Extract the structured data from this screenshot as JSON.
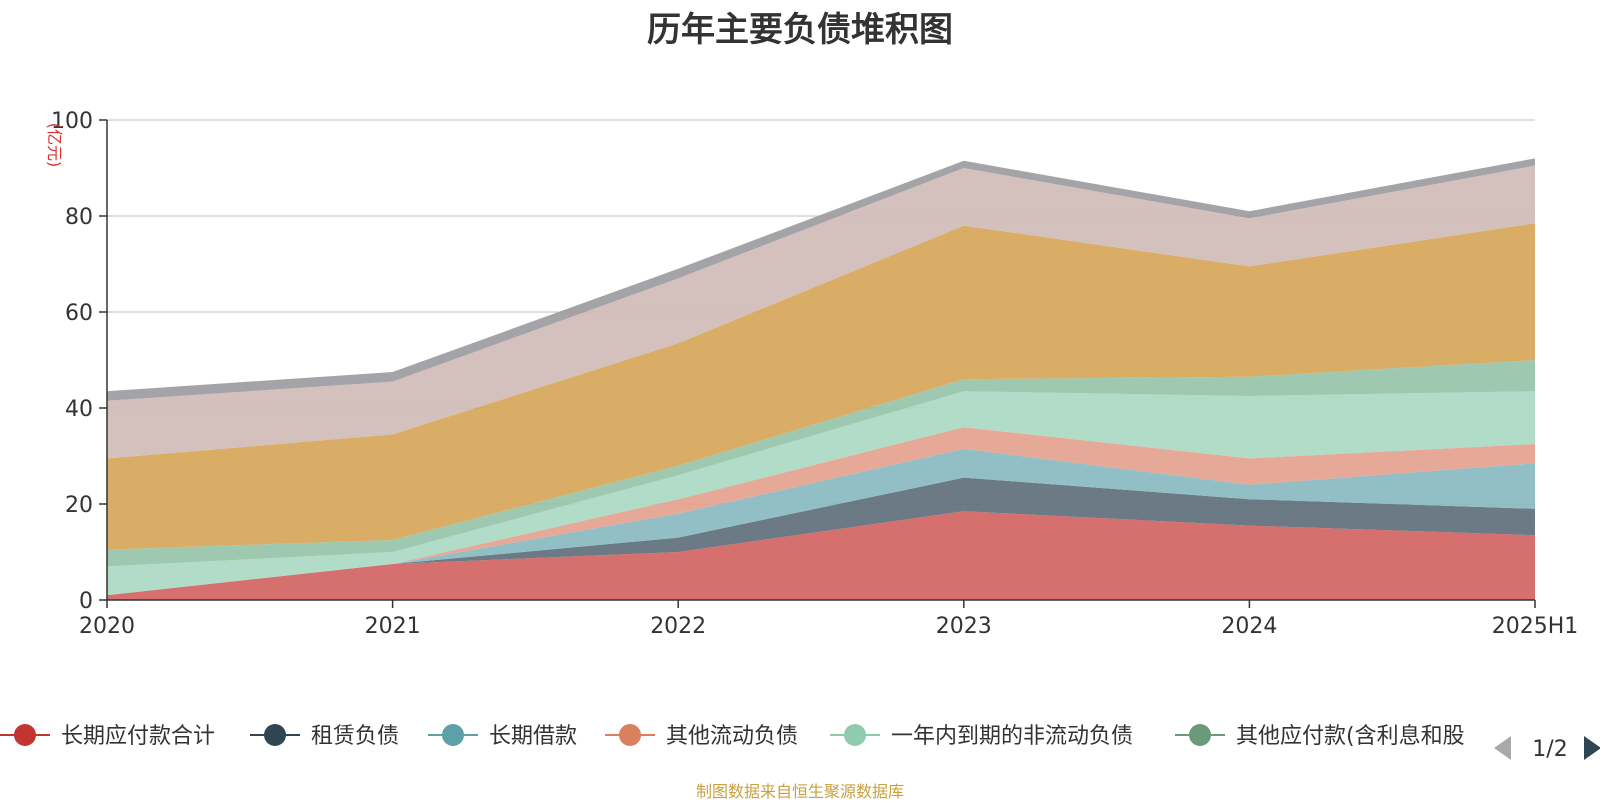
{
  "title": "历年主要负债堆积图",
  "source": "制图数据来自恒生聚源数据库",
  "chart_data": {
    "type": "area",
    "stacked": true,
    "title": "历年主要负债堆积图",
    "ylabel": "(亿元)",
    "x": [
      "2020",
      "2021",
      "2022",
      "2023",
      "2024",
      "2025H1"
    ],
    "ylim": [
      0,
      100
    ],
    "yticks": [
      "0",
      "20",
      "40",
      "60",
      "80",
      "100"
    ],
    "grid": true,
    "legend_position": "bottom",
    "legend_page": "1/2",
    "series": [
      {
        "name": "长期应付款合计",
        "color": "#d0605e",
        "values": [
          1.0,
          7.5,
          10.0,
          18.5,
          15.5,
          13.5
        ]
      },
      {
        "name": "租赁负债",
        "color": "#5b6b78",
        "values": [
          0.0,
          0.0,
          3.0,
          7.0,
          5.5,
          5.5
        ]
      },
      {
        "name": "长期借款",
        "color": "#86b7c0",
        "values": [
          0.0,
          0.0,
          5.0,
          6.0,
          3.0,
          9.5
        ]
      },
      {
        "name": "其他流动负债",
        "color": "#e4a08c",
        "values": [
          0.0,
          0.0,
          3.0,
          4.5,
          5.5,
          4.0
        ]
      },
      {
        "name": "一年内到期的非流动负债",
        "color": "#a8d8c2",
        "values": [
          6.0,
          2.5,
          5.0,
          7.5,
          13.0,
          11.0
        ]
      },
      {
        "name": "其他应付款(含利息和股",
        "color": "#94c2a6",
        "values": [
          3.5,
          2.5,
          2.0,
          2.5,
          4.0,
          6.5
        ]
      },
      {
        "name": "",
        "color": "#d6a456",
        "values": [
          19.0,
          22.0,
          25.5,
          32.0,
          23.0,
          28.5
        ]
      },
      {
        "name": "",
        "color": "#cfbab6",
        "values": [
          12.0,
          11.0,
          13.5,
          12.0,
          10.0,
          12.0
        ]
      },
      {
        "name": "",
        "color": "#9a9a9e",
        "values": [
          2.0,
          2.0,
          2.0,
          1.5,
          1.5,
          1.5
        ]
      }
    ]
  }
}
